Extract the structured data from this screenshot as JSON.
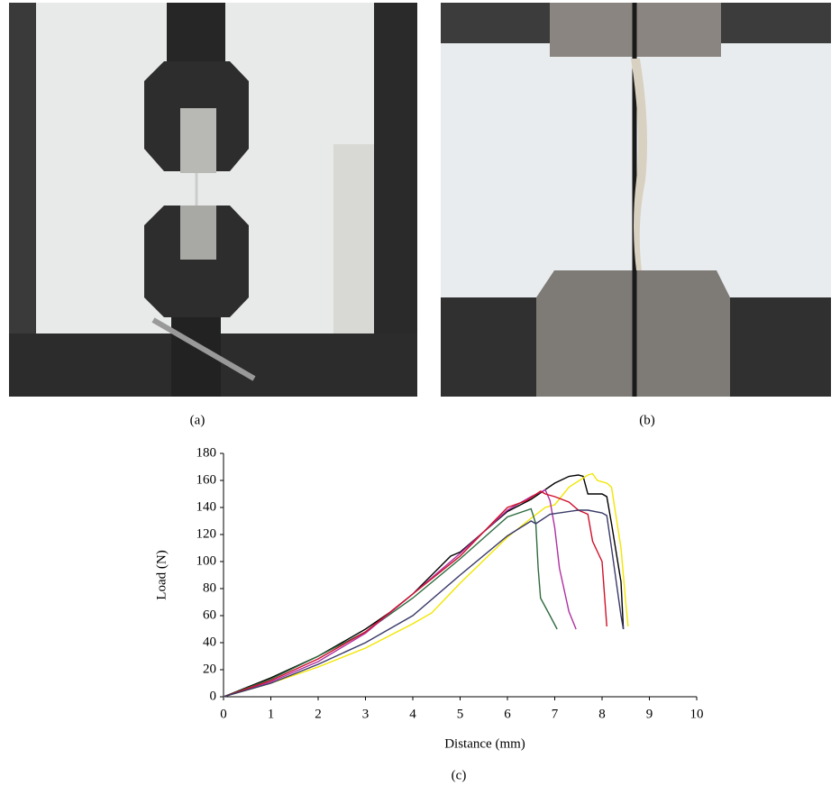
{
  "panels": [
    "(a)",
    "(b)",
    "(c)"
  ],
  "chart_data": {
    "type": "line",
    "xlabel": "Distance (mm)",
    "ylabel": "Load (N)",
    "xlim": [
      0,
      10
    ],
    "ylim": [
      0,
      180
    ],
    "xticks": [
      0,
      1,
      2,
      3,
      4,
      5,
      6,
      7,
      8,
      9,
      10
    ],
    "yticks": [
      0,
      20,
      40,
      60,
      80,
      100,
      120,
      140,
      160,
      180
    ],
    "series": [
      {
        "color": "#000000",
        "x": [
          0,
          1,
          2,
          3,
          3.5,
          4,
          4.8,
          5,
          6,
          6.5,
          7,
          7.3,
          7.5,
          7.6,
          7.7,
          8,
          8.1,
          8.2,
          8.4,
          8.45
        ],
        "values": [
          0,
          14,
          30,
          50,
          62,
          76,
          104,
          107,
          137,
          146,
          158,
          163,
          164,
          163,
          150,
          150,
          148,
          128,
          85,
          50
        ]
      },
      {
        "color": "#f2e600",
        "x": [
          0,
          1,
          2,
          3,
          4,
          4.4,
          5,
          6,
          6.5,
          6.8,
          7,
          7.3,
          7.7,
          7.8,
          7.9,
          8.1,
          8.2,
          8.4,
          8.5,
          8.55
        ],
        "values": [
          0,
          10,
          22,
          36,
          54,
          62,
          84,
          118,
          132,
          140,
          142,
          155,
          164,
          165,
          160,
          158,
          155,
          110,
          70,
          52
        ]
      },
      {
        "color": "#2e6b3f",
        "x": [
          0,
          1,
          2,
          3,
          4,
          5,
          6,
          6.5,
          6.6,
          6.65,
          6.7,
          6.9,
          7.05
        ],
        "values": [
          0,
          13,
          30,
          48,
          73,
          102,
          133,
          139,
          128,
          95,
          73,
          60,
          50
        ]
      },
      {
        "color": "#b030a0",
        "x": [
          0,
          1,
          2,
          3,
          4,
          5,
          6,
          6.5,
          6.8,
          6.9,
          7,
          7.1,
          7.3,
          7.45
        ],
        "values": [
          0,
          11,
          26,
          47,
          76,
          106,
          138,
          148,
          153,
          145,
          125,
          95,
          63,
          50
        ]
      },
      {
        "color": "#d0102a",
        "x": [
          0,
          1,
          2,
          3,
          4,
          5,
          5.5,
          6,
          6.4,
          6.7,
          6.8,
          7,
          7.3,
          7.5,
          7.7,
          7.8,
          8,
          8.1
        ],
        "values": [
          0,
          12,
          28,
          48,
          76,
          104,
          122,
          140,
          145,
          152,
          150,
          148,
          144,
          138,
          135,
          115,
          100,
          52
        ]
      },
      {
        "color": "#3a3a6a",
        "x": [
          0,
          1,
          2,
          3,
          4,
          5,
          6,
          6.5,
          6.6,
          6.9,
          7.5,
          7.7,
          8,
          8.1,
          8.2,
          8.4,
          8.45
        ],
        "values": [
          0,
          10,
          24,
          40,
          60,
          90,
          119,
          130,
          128,
          135,
          138,
          138,
          136,
          134,
          110,
          60,
          50
        ]
      }
    ]
  }
}
